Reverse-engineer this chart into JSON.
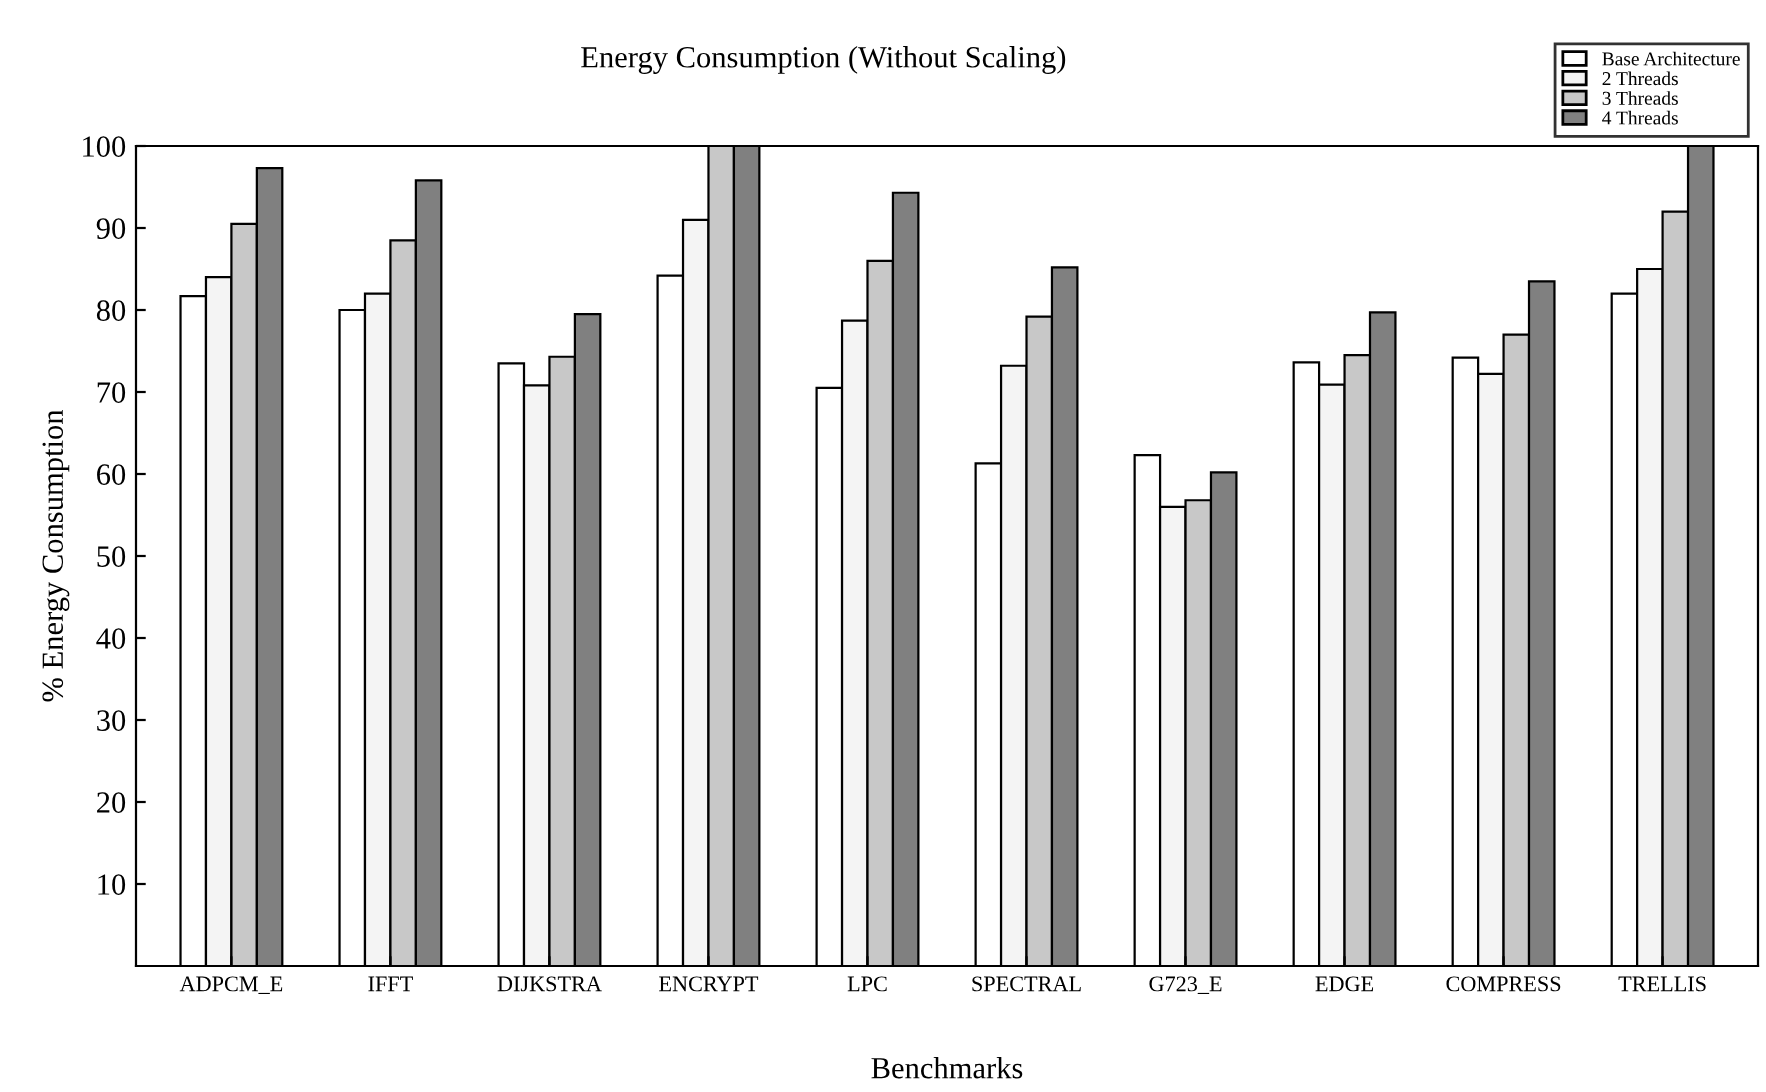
{
  "chart_data": {
    "type": "bar",
    "title": "Energy Consumption (Without Scaling)",
    "xlabel": "Benchmarks",
    "ylabel": "% Energy Consumption",
    "categories": [
      "ADPCM_E",
      "IFFT",
      "DIJKSTRA",
      "ENCRYPT",
      "LPC",
      "SPECTRAL",
      "G723_E",
      "EDGE",
      "COMPRESS",
      "TRELLIS"
    ],
    "series": [
      {
        "name": "Base Architecture",
        "color": "#ffffff",
        "values": [
          81.7,
          80,
          73.5,
          84.2,
          70.5,
          61.3,
          62.3,
          73.6,
          74.2,
          82
        ]
      },
      {
        "name": "2 Threads",
        "color": "#f4f4f4",
        "values": [
          84,
          82,
          70.8,
          91,
          78.7,
          73.2,
          56,
          70.9,
          72.2,
          85
        ]
      },
      {
        "name": "3 Threads",
        "color": "#c8c8c8",
        "values": [
          90.5,
          88.5,
          74.3,
          100,
          86,
          79.2,
          56.8,
          74.5,
          77,
          92
        ]
      },
      {
        "name": "4 Threads",
        "color": "#808080",
        "values": [
          97.3,
          95.8,
          79.5,
          100,
          94.3,
          85.2,
          60.2,
          79.7,
          83.5,
          100
        ]
      }
    ],
    "ylim": [
      0,
      100
    ],
    "yticks": [
      10,
      20,
      30,
      40,
      50,
      60,
      70,
      80,
      90,
      100
    ],
    "grid": false,
    "legend": "top right"
  }
}
